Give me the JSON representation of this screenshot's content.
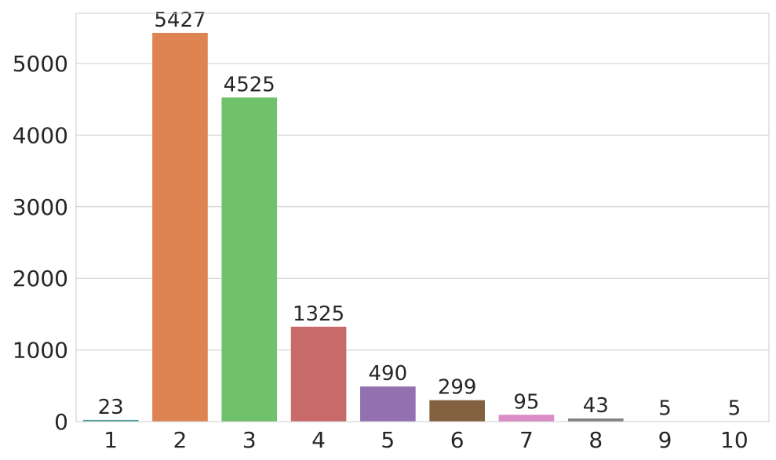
{
  "chart_data": {
    "type": "bar",
    "title": "",
    "xlabel": "",
    "ylabel": "",
    "categories": [
      "1",
      "2",
      "3",
      "4",
      "5",
      "6",
      "7",
      "8",
      "9",
      "10"
    ],
    "values": [
      23,
      5427,
      4525,
      1325,
      490,
      299,
      95,
      43,
      5,
      5
    ],
    "colors": [
      "#4c9d9e",
      "#dd8452",
      "#6fc16b",
      "#c96a6a",
      "#9370b0",
      "#83603f",
      "#d98cc6",
      "#808080",
      "#c4c46a",
      "#5fb8c8"
    ],
    "ylim": [
      0,
      5700
    ],
    "yticks": [
      0,
      1000,
      2000,
      3000,
      4000,
      5000
    ],
    "grid": true,
    "show_data_labels": true
  }
}
